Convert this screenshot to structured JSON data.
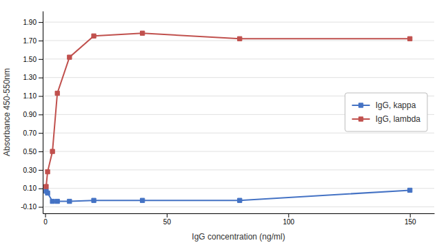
{
  "chart_data": {
    "type": "line",
    "xlabel": "IgG concentration (ng/ml)",
    "ylabel": "Absorbance 450-550nm",
    "x": [
      0.4,
      1,
      3,
      5,
      10,
      20,
      40,
      80,
      150
    ],
    "series": [
      {
        "name": "IgG, kappa",
        "color": "#4472c4",
        "marker": "square",
        "values": [
          0.07,
          0.05,
          -0.04,
          -0.04,
          -0.04,
          -0.03,
          -0.03,
          -0.03,
          0.08
        ]
      },
      {
        "name": "IgG, lambda",
        "color": "#c0504d",
        "marker": "square",
        "values": [
          0.12,
          0.28,
          0.5,
          1.13,
          1.52,
          1.75,
          1.78,
          1.72,
          1.72
        ]
      }
    ],
    "xlim": [
      -1,
      160
    ],
    "xticks": [
      0,
      50,
      100,
      150
    ],
    "ylim": [
      -0.17,
      2.02
    ],
    "yticks": [
      {
        "value": -0.1,
        "label": "-0.10"
      },
      {
        "value": 0.1,
        "label": "0.10"
      },
      {
        "value": 0.3,
        "label": "0.30"
      },
      {
        "value": 0.5,
        "label": "0.50"
      },
      {
        "value": 0.7,
        "label": "0.70"
      },
      {
        "value": 0.9,
        "label": "0.90"
      },
      {
        "value": 1.1,
        "label": "1.10"
      },
      {
        "value": 1.3,
        "label": "1.30"
      },
      {
        "value": 1.5,
        "label": "1.50"
      },
      {
        "value": 1.7,
        "label": "1.70"
      },
      {
        "value": 1.9,
        "label": "1.90"
      }
    ],
    "grid": "y",
    "legend": "center right"
  }
}
